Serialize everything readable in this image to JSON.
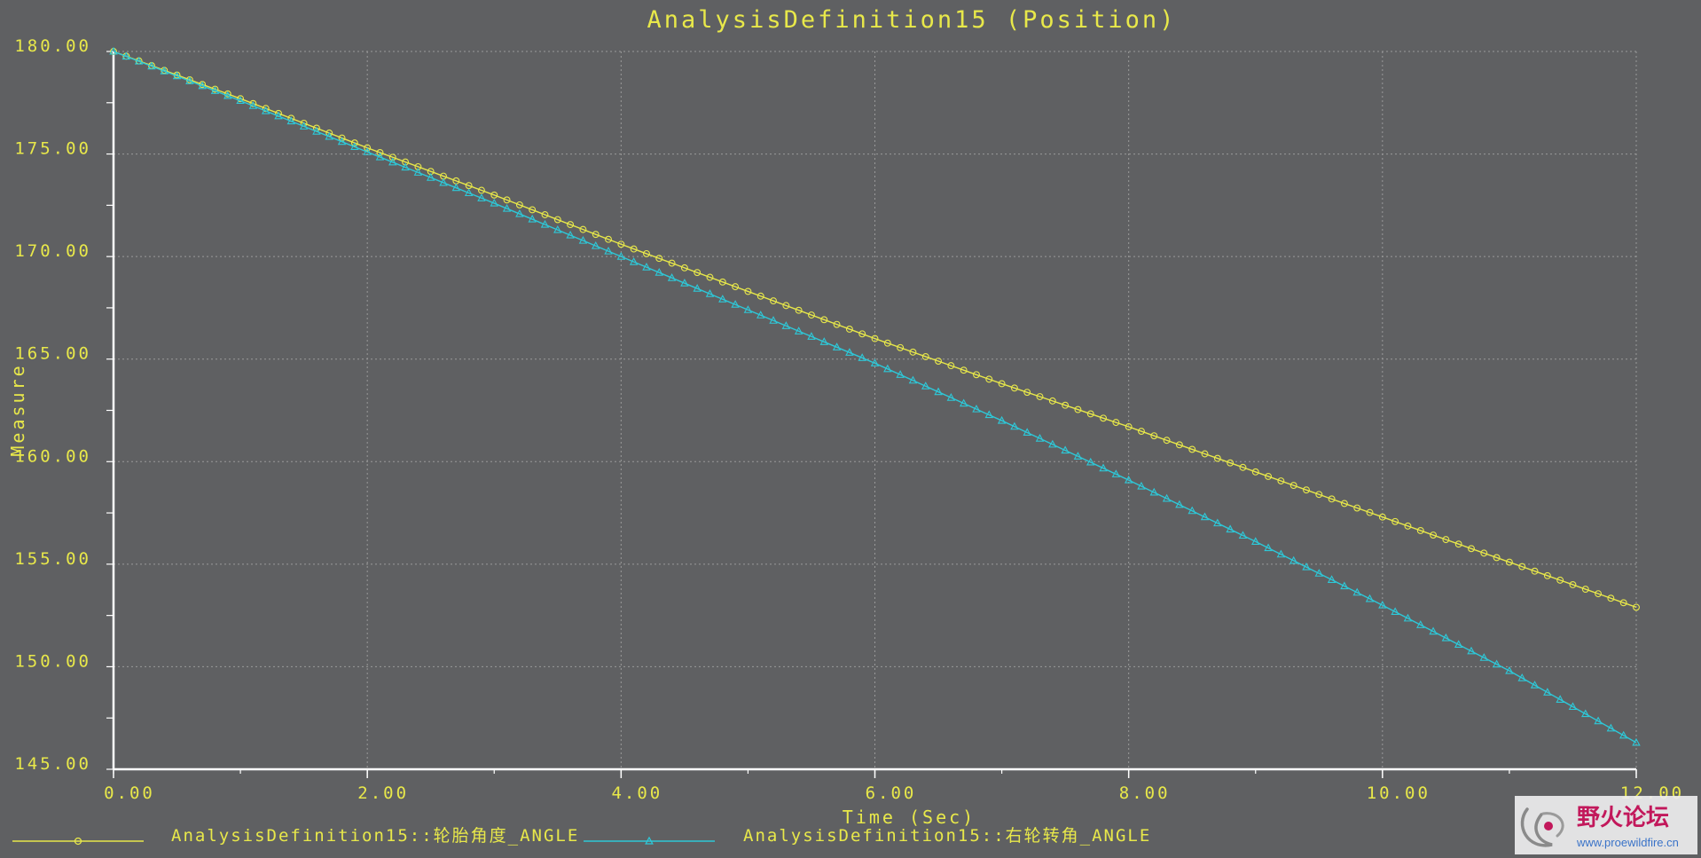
{
  "chart_data": {
    "type": "line",
    "title": "AnalysisDefinition15 (Position)",
    "xlabel": "Time (Sec)",
    "ylabel": "Measure",
    "xlim": [
      0,
      12
    ],
    "ylim": [
      145,
      180
    ],
    "x_ticks": [
      "0.00",
      "2.00",
      "4.00",
      "6.00",
      "8.00",
      "10.00",
      "12.00"
    ],
    "y_ticks": [
      "180.00",
      "175.00",
      "170.00",
      "165.00",
      "160.00",
      "155.00",
      "150.00",
      "145.00"
    ],
    "grid": true,
    "legend_position": "bottom",
    "sample_count": 121,
    "series": [
      {
        "name": "AnalysisDefinition15::轮胎角度_ANGLE",
        "color": "#e8e84a",
        "marker": "circle",
        "x": [
          0,
          1,
          2,
          3,
          4,
          5,
          6,
          7,
          8,
          9,
          10,
          11,
          12
        ],
        "y": [
          180.0,
          177.7,
          175.3,
          173.0,
          170.6,
          168.3,
          166.0,
          163.8,
          161.7,
          159.5,
          157.3,
          155.1,
          152.9
        ]
      },
      {
        "name": "AnalysisDefinition15::右轮转角_ANGLE",
        "color": "#2ec8d8",
        "marker": "triangle",
        "x": [
          0,
          1,
          2,
          3,
          4,
          5,
          6,
          7,
          8,
          9,
          10,
          11,
          12
        ],
        "y": [
          180.0,
          177.6,
          175.1,
          172.6,
          170.0,
          167.4,
          164.8,
          162.0,
          159.1,
          156.1,
          153.0,
          149.8,
          146.3
        ]
      }
    ]
  },
  "watermark": {
    "site_name": "野火论坛",
    "url": "www.proewildfire.cn"
  }
}
